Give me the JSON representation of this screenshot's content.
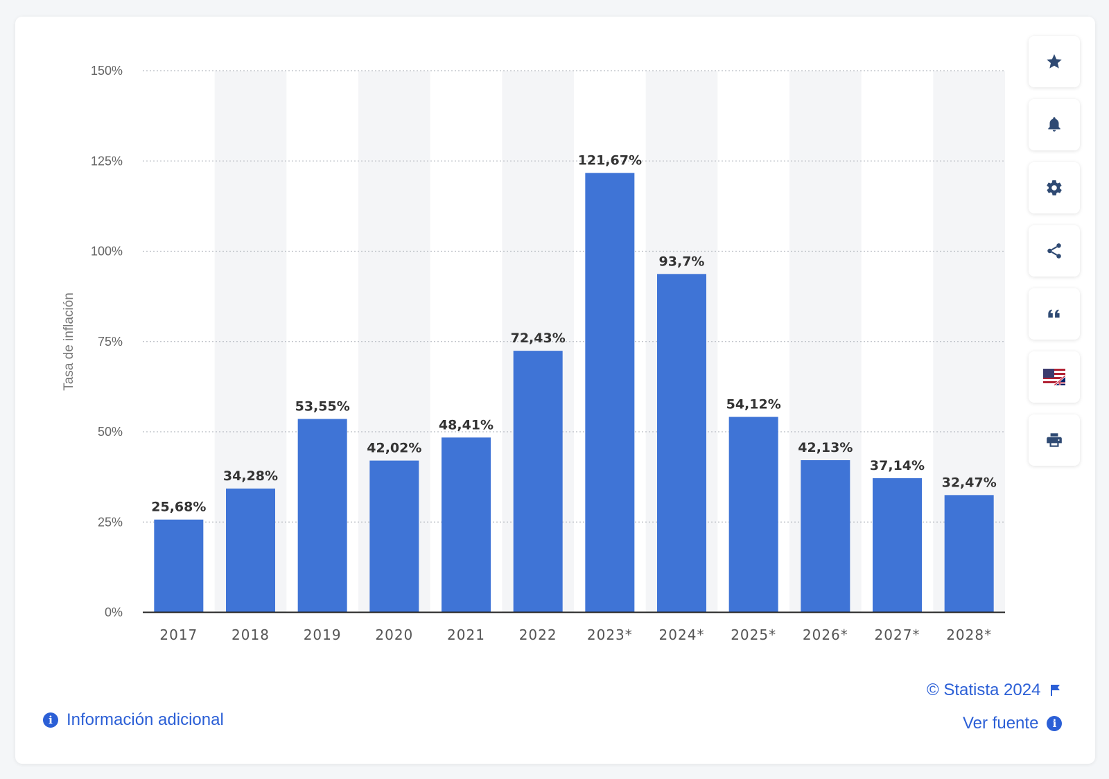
{
  "colors": {
    "bar": "#3f74d6",
    "link": "#2b5fd6",
    "icon": "#2f4a73",
    "band": "#f4f5f7",
    "grid": "#b9bdc4",
    "axis_text": "#666666",
    "label_text": "#333333"
  },
  "chart_data": {
    "type": "bar",
    "ylabel": "Tasa de inflación",
    "xlabel": "",
    "title": "",
    "categories": [
      "2017",
      "2018",
      "2019",
      "2020",
      "2021",
      "2022",
      "2023*",
      "2024*",
      "2025*",
      "2026*",
      "2027*",
      "2028*"
    ],
    "values": [
      25.68,
      34.28,
      53.55,
      42.02,
      48.41,
      72.43,
      121.67,
      93.7,
      54.12,
      42.13,
      37.14,
      32.47
    ],
    "value_labels": [
      "25,68%",
      "34,28%",
      "53,55%",
      "42,02%",
      "48,41%",
      "72,43%",
      "121,67%",
      "93,7%",
      "54,12%",
      "42,13%",
      "37,14%",
      "32,47%"
    ],
    "ylim": [
      0,
      150
    ],
    "yticks": [
      0,
      25,
      50,
      75,
      100,
      125,
      150
    ],
    "ytick_labels": [
      "0%",
      "25%",
      "50%",
      "75%",
      "100%",
      "125%",
      "150%"
    ],
    "grid": true,
    "legend": "none"
  },
  "toolbar": {
    "icons": [
      "star-icon",
      "bell-icon",
      "gear-icon",
      "share-icon",
      "quote-icon",
      "flag-icon",
      "print-icon"
    ]
  },
  "footer": {
    "info_link": "Información adicional",
    "copyright": "© Statista 2024",
    "source_link": "Ver fuente",
    "info_glyph": "i"
  }
}
